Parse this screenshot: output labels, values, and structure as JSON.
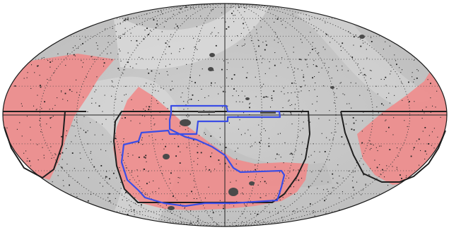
{
  "map": {
    "projection": "mollweide",
    "graticule": "dotted",
    "colors": {
      "sky_background": "#c8c8c8",
      "sky_band_light": "#e2e2e2",
      "sky_band_dark": "#a8a8a8",
      "graticule": "#444444",
      "red_footprint": "#f08a8a",
      "survey_boundary": "#1f1f1f",
      "blue_contour": "#3a4de6",
      "masked_sources": "#222222",
      "outline": "#1a1a1a"
    },
    "features": [
      {
        "name": "red-footprint-left",
        "color_key": "red_footprint"
      },
      {
        "name": "red-footprint-center",
        "color_key": "red_footprint"
      },
      {
        "name": "red-footprint-right",
        "color_key": "red_footprint"
      },
      {
        "name": "survey-boundary",
        "color_key": "survey_boundary"
      },
      {
        "name": "blue-contour",
        "color_key": "blue_contour"
      }
    ]
  }
}
